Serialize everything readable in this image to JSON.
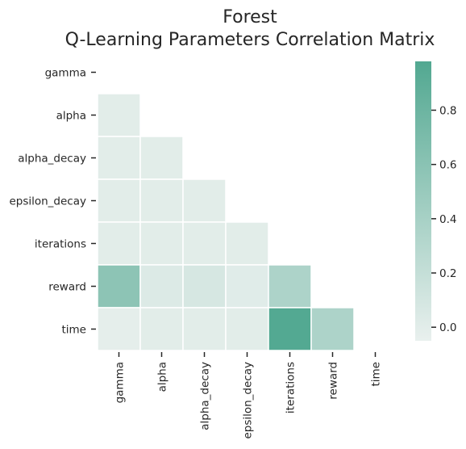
{
  "chart_data": {
    "type": "heatmap",
    "title": "Forest",
    "subtitle": "Q-Learning Parameters Correlation Matrix",
    "xlabel": "",
    "ylabel": "",
    "rows": [
      "gamma",
      "alpha",
      "alpha_decay",
      "epsilon_decay",
      "iterations",
      "reward",
      "time"
    ],
    "columns": [
      "gamma",
      "alpha",
      "alpha_decay",
      "epsilon_decay",
      "iterations",
      "reward",
      "time"
    ],
    "mask": "upper triangle including diagonal",
    "values": [
      [
        null,
        null,
        null,
        null,
        null,
        null,
        null
      ],
      [
        0.0,
        null,
        null,
        null,
        null,
        null,
        null
      ],
      [
        0.0,
        0.0,
        null,
        null,
        null,
        null,
        null
      ],
      [
        0.0,
        0.0,
        0.0,
        null,
        null,
        null,
        null
      ],
      [
        0.0,
        0.0,
        0.0,
        0.0,
        null,
        null,
        null
      ],
      [
        0.58,
        0.04,
        0.08,
        0.01,
        0.36,
        null,
        null
      ],
      [
        -0.02,
        0.0,
        0.0,
        0.0,
        0.97,
        0.36,
        null
      ]
    ],
    "colorbar": {
      "range": [
        -0.05,
        0.98
      ],
      "ticks": [
        0.0,
        0.2,
        0.4,
        0.6,
        0.8
      ],
      "tick_labels": [
        "0.0",
        "0.2",
        "0.4",
        "0.6",
        "0.8"
      ],
      "color_low": "#e9f0ee",
      "color_high": "#52a891"
    },
    "cell_border_color": "#ffffff",
    "grid": false
  }
}
